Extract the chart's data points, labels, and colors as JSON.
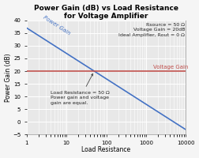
{
  "title_line1": "Power Gain (dB) vs Load Resistance",
  "title_line2": "for Voltage Amplifier",
  "xlabel": "Load Resistance",
  "ylabel": "Power Gain (dB)",
  "xlim_log": [
    1,
    10000
  ],
  "ylim": [
    -5,
    40
  ],
  "yticks": [
    -5,
    0,
    5,
    10,
    15,
    20,
    25,
    30,
    35,
    40
  ],
  "voltage_gain_db": 20,
  "rsource": 50,
  "note_top": "Rsource = 50 Ω\nVoltage Gain = 20dB\nIdeal Amplifier, Rout = 0 Ω",
  "annotation_text": "Load Resistance = 50 Ω\nPower gain and voltage\ngain are equal.",
  "line_color": "#4472C4",
  "hline_color": "#C0504D",
  "plot_bg_color": "#E8E8E8",
  "fig_bg_color": "#F5F5F5",
  "grid_color": "#FFFFFF",
  "title_fontsize": 6.5,
  "axis_label_fontsize": 5.5,
  "tick_fontsize": 5,
  "note_fontsize": 4.5,
  "annot_fontsize": 4.5,
  "power_gain_label_text": "Power Gain",
  "voltage_gain_label_text": "Voltage Gain"
}
